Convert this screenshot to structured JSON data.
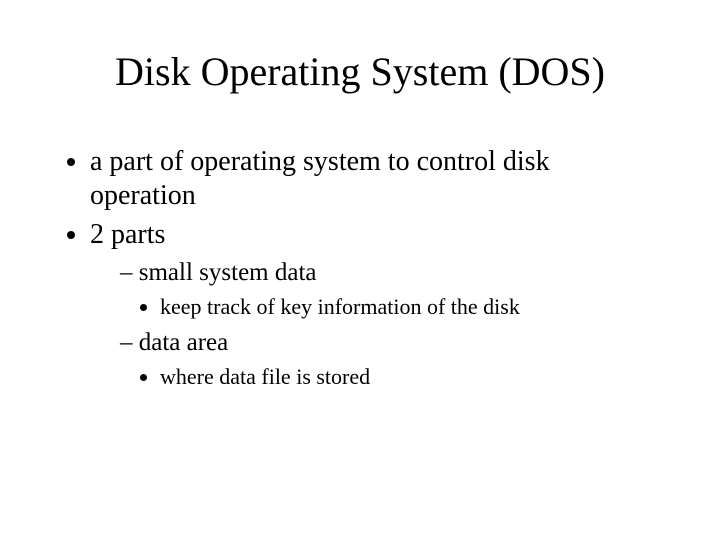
{
  "title": "Disk Operating System (DOS)",
  "bullets": {
    "b1": "a part of operating system to control disk operation",
    "b2": "2 parts",
    "sub1": "small system data",
    "sub1_detail": "keep track of key information of the disk",
    "sub2": "data area",
    "sub2_detail": "where data file is stored"
  },
  "colors": {
    "background": "#ffffff",
    "text": "#000000"
  },
  "typography": {
    "font_family": "Times New Roman",
    "title_size_pt": 40,
    "level1_size_pt": 28,
    "level2_size_pt": 25,
    "level3_size_pt": 22
  }
}
